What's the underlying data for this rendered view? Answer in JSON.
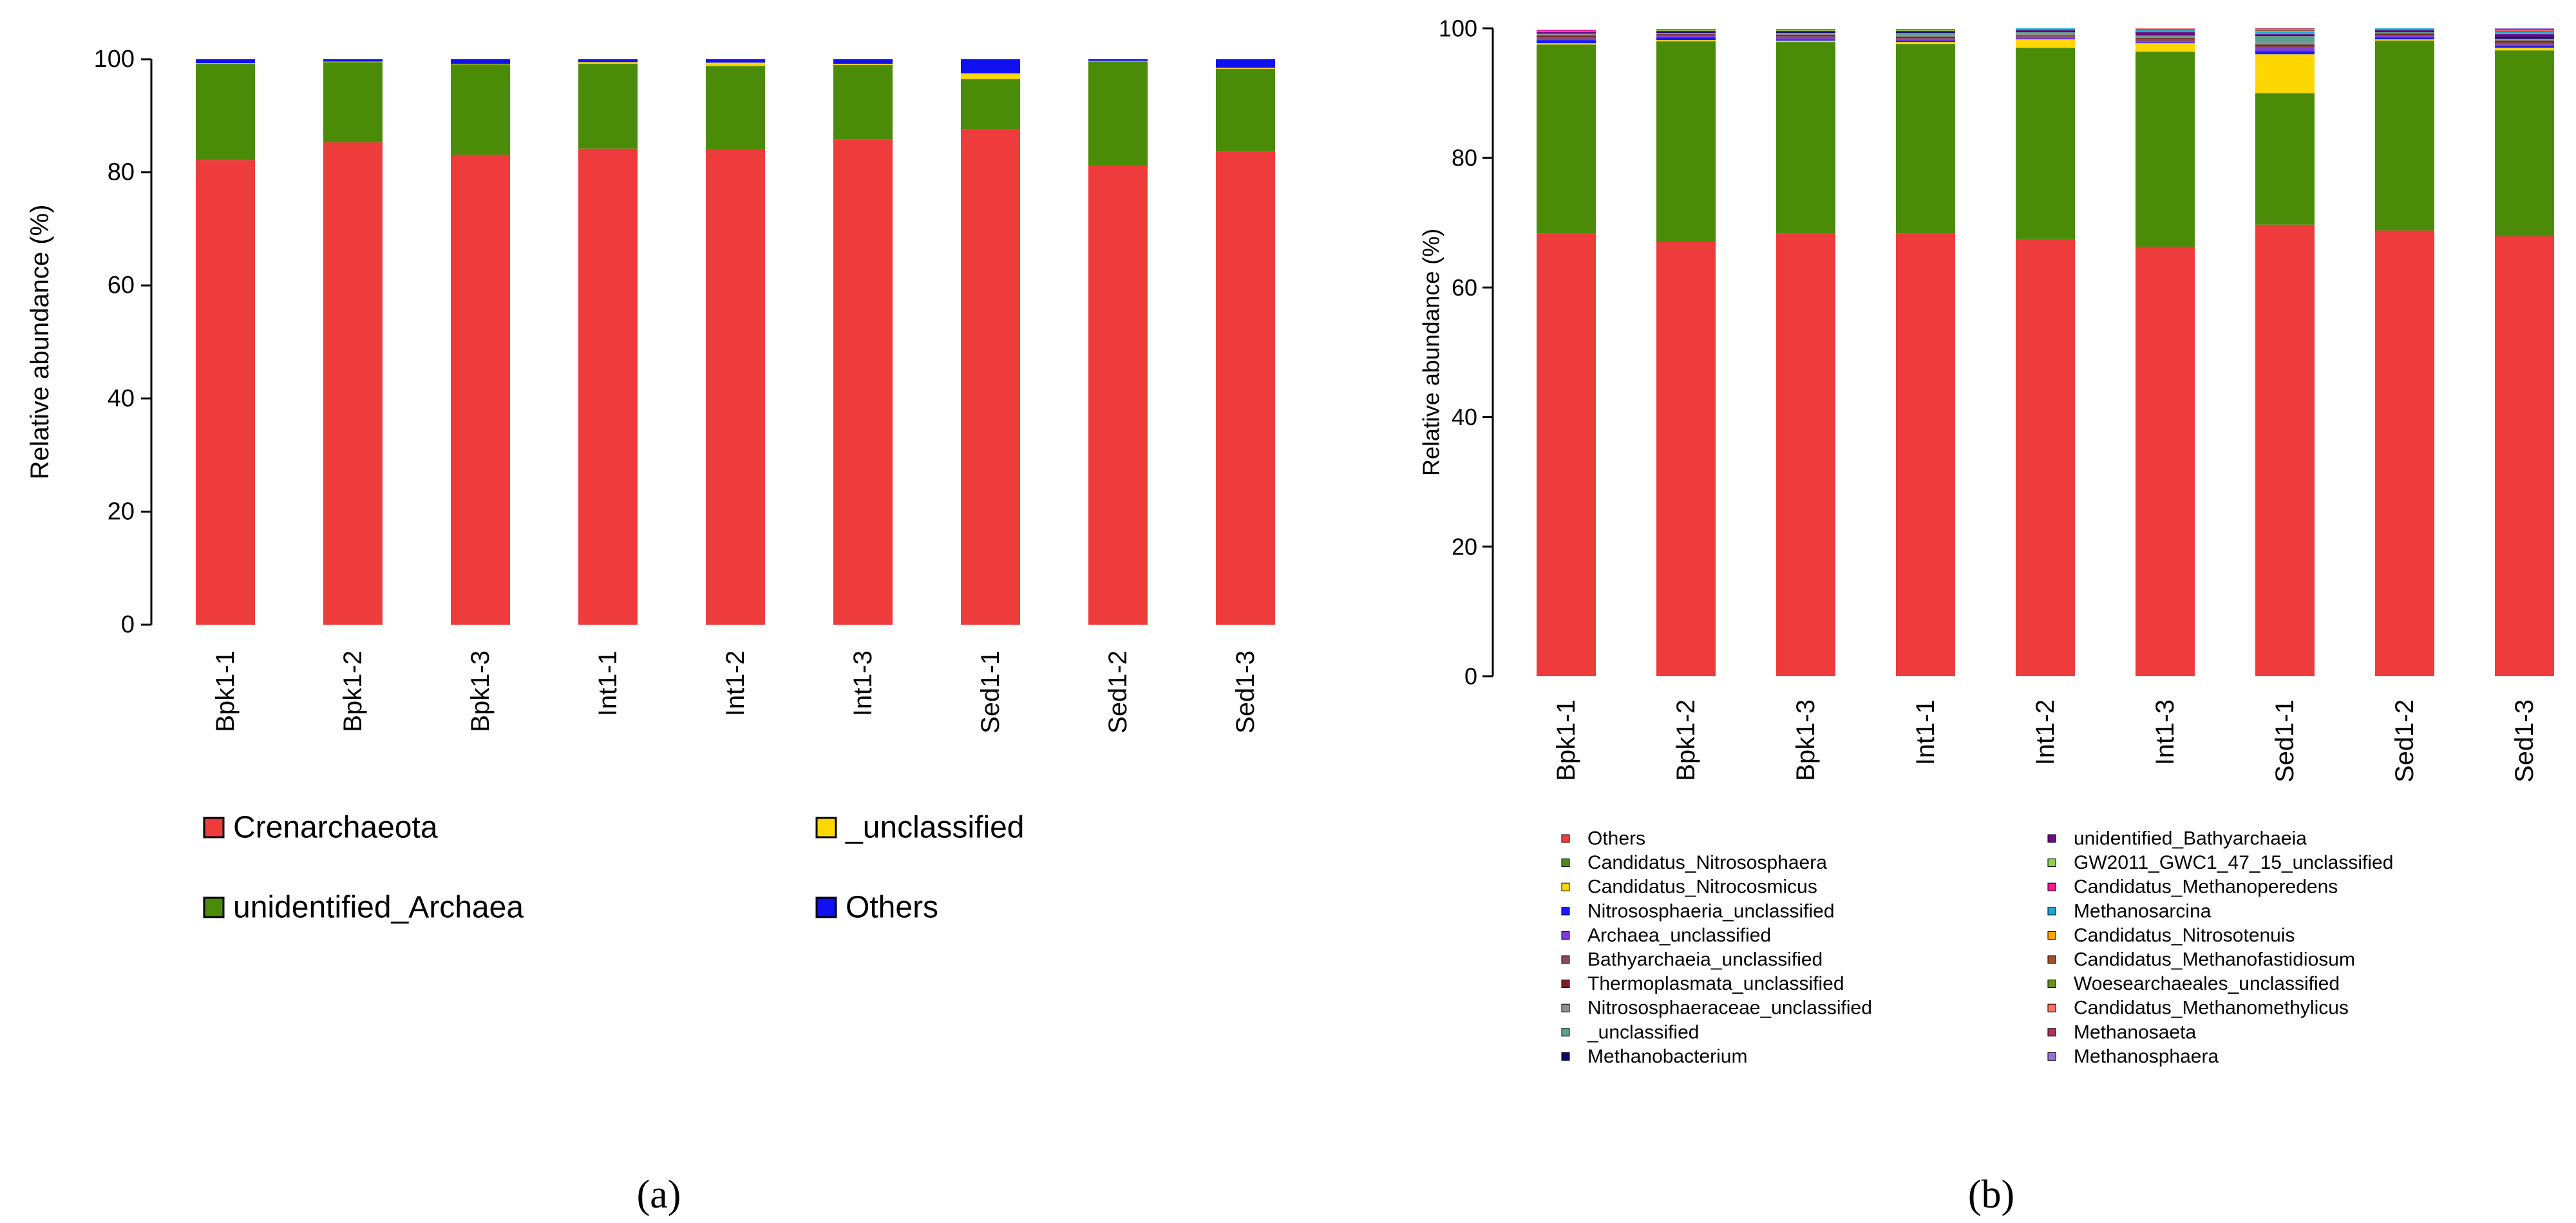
{
  "chart_data": [
    {
      "type": "bar",
      "stacked": true,
      "panel_label": "(a)",
      "ylabel": "Relative abundance (%)",
      "ylim": [
        0,
        100
      ],
      "yticks": [
        0,
        20,
        40,
        60,
        80,
        100
      ],
      "grid": false,
      "legend_position": "bottom",
      "categories": [
        "Bpk1-1",
        "Bpk1-2",
        "Bpk1-3",
        "Int1-1",
        "Int1-2",
        "Int1-3",
        "Sed1-1",
        "Sed1-2",
        "Sed1-3"
      ],
      "series": [
        {
          "name": "Crenarchaeota",
          "color": "#ee3b3b",
          "values": [
            82.2,
            85.3,
            83.1,
            84.2,
            84.0,
            85.8,
            87.5,
            81.2,
            83.7
          ]
        },
        {
          "name": "unidentified_Archaea",
          "color": "#4a8c08",
          "values": [
            17.0,
            14.2,
            16.0,
            15.0,
            14.8,
            13.2,
            9.0,
            18.4,
            14.6
          ]
        },
        {
          "name": "_unclassified",
          "color": "#ffd700",
          "values": [
            0.1,
            0.1,
            0.1,
            0.3,
            0.6,
            0.2,
            1.0,
            0.1,
            0.2
          ]
        },
        {
          "name": "Others",
          "color": "#1010f0",
          "values": [
            0.7,
            0.4,
            0.8,
            0.5,
            0.6,
            0.8,
            2.5,
            0.3,
            1.5
          ]
        }
      ],
      "legend_layout": [
        [
          "Crenarchaeota",
          "_unclassified"
        ],
        [
          "unidentified_Archaea",
          "Others"
        ]
      ]
    },
    {
      "type": "bar",
      "stacked": true,
      "panel_label": "(b)",
      "ylabel": "Relative abundance (%)",
      "ylim": [
        0,
        100
      ],
      "yticks": [
        0,
        20,
        40,
        60,
        80,
        100
      ],
      "grid": false,
      "legend_position": "bottom",
      "categories": [
        "Bpk1-1",
        "Bpk1-2",
        "Bpk1-3",
        "Int1-1",
        "Int1-2",
        "Int1-3",
        "Sed1-1",
        "Sed1-2",
        "Sed1-3"
      ],
      "series": [
        {
          "name": "Others",
          "color": "#ee3b3b",
          "values": [
            68.3,
            67.0,
            68.3,
            68.3,
            67.5,
            66.3,
            69.7,
            68.8,
            67.9
          ]
        },
        {
          "name": "Candidatus_Nitrososphaera",
          "color": "#4a8c08",
          "values": [
            29.2,
            31.0,
            29.6,
            29.3,
            29.5,
            30.1,
            20.3,
            29.3,
            28.7
          ]
        },
        {
          "name": "Candidatus_Nitrocosmicus",
          "color": "#ffd700",
          "values": [
            0.2,
            0.2,
            0.2,
            0.3,
            1.3,
            1.3,
            6.0,
            0.2,
            0.4
          ]
        },
        {
          "name": "Nitrososphaeria_unclassified",
          "color": "#1a1aff",
          "values": [
            0.5,
            0.4,
            0.2,
            0.2,
            0.1,
            0.1,
            0.5,
            0.3,
            0.3
          ]
        },
        {
          "name": "Archaea_unclassified",
          "color": "#7b3fd6",
          "values": [
            0.2,
            0.2,
            0.2,
            0.2,
            0.2,
            0.2,
            0.5,
            0.2,
            0.2
          ]
        },
        {
          "name": "Bathyarchaeia_unclassified",
          "color": "#8b4a5a",
          "values": [
            0.3,
            0.2,
            0.3,
            0.2,
            0.2,
            0.3,
            0.2,
            0.2,
            0.3
          ]
        },
        {
          "name": "Thermoplasmata_unclassified",
          "color": "#7a1f1f",
          "values": [
            0.2,
            0.1,
            0.2,
            0.2,
            0.1,
            0.2,
            0.3,
            0.2,
            0.3
          ]
        },
        {
          "name": "Nitrososphaeraceae_unclassified",
          "color": "#909090",
          "values": [
            0.2,
            0.1,
            0.2,
            0.2,
            0.3,
            0.2,
            0.3,
            0.1,
            0.2
          ]
        },
        {
          "name": "_unclassified",
          "color": "#5f9f8f",
          "values": [
            0.1,
            0.1,
            0.1,
            0.4,
            0.2,
            0.2,
            1.0,
            0.1,
            0.1
          ]
        },
        {
          "name": "Methanobacterium",
          "color": "#0a0a6e",
          "values": [
            0.1,
            0.1,
            0.1,
            0.1,
            0.1,
            0.1,
            0.1,
            0.1,
            0.3
          ]
        },
        {
          "name": "unidentified_Bathyarchaeia",
          "color": "#6a0a8a",
          "values": [
            0.2,
            0.2,
            0.2,
            0.2,
            0.2,
            0.4,
            0.2,
            0.2,
            0.4
          ]
        },
        {
          "name": "GW2011_GWC1_47_15_unclassified",
          "color": "#8fd14f",
          "values": [
            0.1,
            0.1,
            0.1,
            0.1,
            0.1,
            0.1,
            0.1,
            0.1,
            0.1
          ]
        },
        {
          "name": "Candidatus_Methanoperedens",
          "color": "#ff1493",
          "values": [
            0.1,
            0.1,
            0.1,
            0.1,
            0.1,
            0.1,
            0.1,
            0.1,
            0.1
          ]
        },
        {
          "name": "Methanosarcina",
          "color": "#1ea7d6",
          "values": [
            0.1,
            0.1,
            0.1,
            0.1,
            0.1,
            0.1,
            0.2,
            0.1,
            0.1
          ]
        },
        {
          "name": "Candidatus_Nitrosotenuis",
          "color": "#ffa500",
          "values": [
            0.0,
            0.0,
            0.0,
            0.0,
            0.0,
            0.0,
            0.1,
            0.0,
            0.0
          ]
        },
        {
          "name": "Candidatus_Methanofastidiosum",
          "color": "#a0522d",
          "values": [
            0.0,
            0.0,
            0.0,
            0.0,
            0.0,
            0.1,
            0.1,
            0.0,
            0.1
          ]
        },
        {
          "name": "Woesearchaeales_unclassified",
          "color": "#6b8e23",
          "values": [
            0.0,
            0.0,
            0.0,
            0.0,
            0.0,
            0.1,
            0.1,
            0.0,
            0.1
          ]
        },
        {
          "name": "Candidatus_Methanomethylicus",
          "color": "#ff6f61",
          "values": [
            0.0,
            0.0,
            0.0,
            0.0,
            0.0,
            0.1,
            0.1,
            0.0,
            0.1
          ]
        },
        {
          "name": "Methanosaeta",
          "color": "#b03060",
          "values": [
            0.0,
            0.0,
            0.0,
            0.0,
            0.0,
            0.0,
            0.1,
            0.0,
            0.2
          ]
        },
        {
          "name": "Methanosphaera",
          "color": "#9370db",
          "values": [
            0.0,
            0.0,
            0.0,
            0.0,
            0.0,
            0.0,
            0.0,
            0.0,
            0.1
          ]
        }
      ],
      "legend_layout": [
        [
          "Others",
          "unidentified_Bathyarchaeia"
        ],
        [
          "Candidatus_Nitrososphaera",
          "GW2011_GWC1_47_15_unclassified"
        ],
        [
          "Candidatus_Nitrocosmicus",
          "Candidatus_Methanoperedens"
        ],
        [
          "Nitrososphaeria_unclassified",
          "Methanosarcina"
        ],
        [
          "Archaea_unclassified",
          "Candidatus_Nitrosotenuis"
        ],
        [
          "Bathyarchaeia_unclassified",
          "Candidatus_Methanofastidiosum"
        ],
        [
          "Thermoplasmata_unclassified",
          "Woesearchaeales_unclassified"
        ],
        [
          "Nitrososphaeraceae_unclassified",
          "Candidatus_Methanomethylicus"
        ],
        [
          "_unclassified",
          "Methanosaeta"
        ],
        [
          "Methanobacterium",
          "Methanosphaera"
        ]
      ]
    }
  ]
}
